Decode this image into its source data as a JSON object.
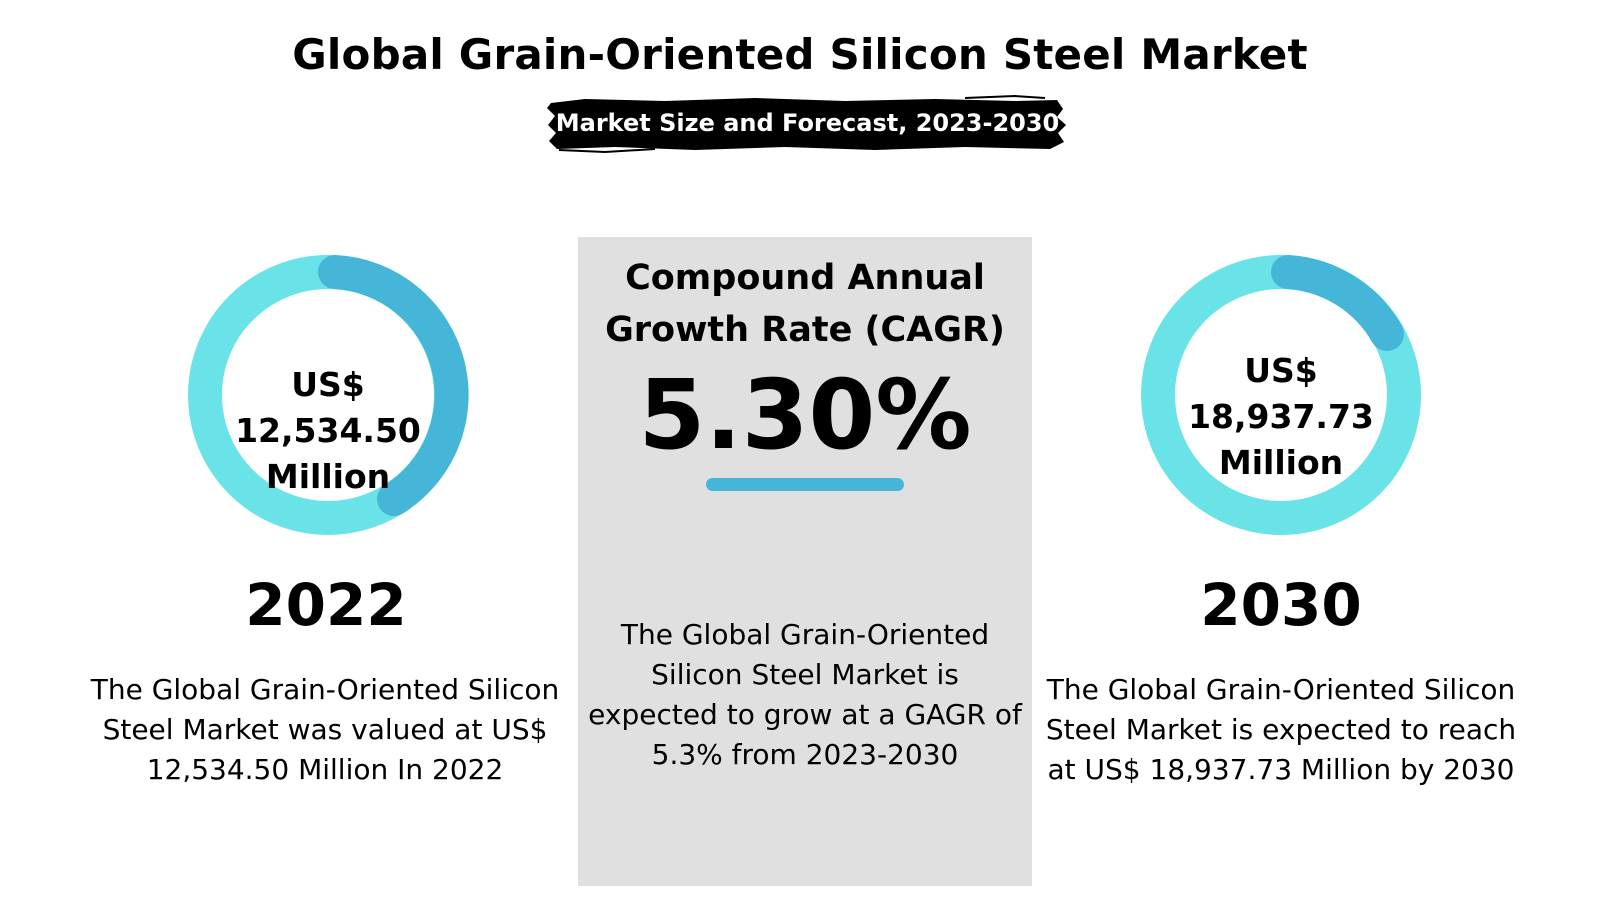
{
  "header": {
    "title": "Global Grain-Oriented Silicon Steel Market",
    "subtitle": "Market Size and Forecast, 2023-2030"
  },
  "colors": {
    "ring_light": "#6ae3e8",
    "ring_dark": "#45b6d8",
    "panel_bg": "#e0e0e0",
    "brush": "#000000"
  },
  "left": {
    "ring_line1": "US$",
    "ring_line2": "12,534.50",
    "ring_line3": "Million",
    "year": "2022",
    "description": "The Global Grain-Oriented Silicon Steel Market was valued at US$ 12,534.50 Million In 2022"
  },
  "center": {
    "heading_line1": "Compound Annual",
    "heading_line2": "Growth Rate (CAGR)",
    "value": "5.30%",
    "description": "The Global Grain-Oriented Silicon Steel Market is expected to grow at a GAGR of 5.3% from 2023-2030"
  },
  "right": {
    "ring_line1": "US$",
    "ring_line2": "18,937.73",
    "ring_line3": "Million",
    "year": "2030",
    "description": "The Global Grain-Oriented Silicon Steel Market is expected to reach at US$ 18,937.73 Million by 2030"
  }
}
